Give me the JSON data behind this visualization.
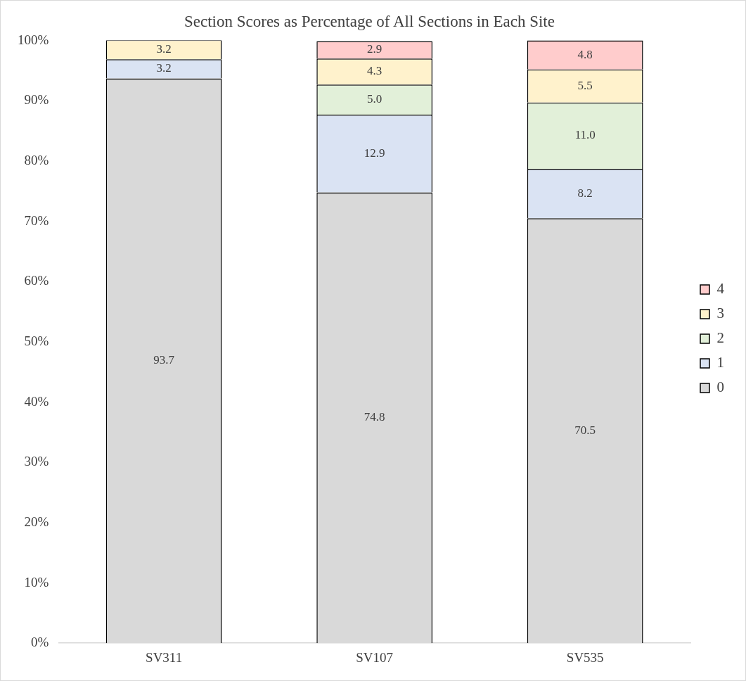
{
  "chart_data": {
    "type": "bar",
    "title": "Section Scores as Percentage of All Sections in Each Site",
    "categories": [
      "SV311",
      "SV107",
      "SV535"
    ],
    "stacked": true,
    "ylim": [
      0,
      100
    ],
    "yticks": [
      {
        "value": 0,
        "label": "0%"
      },
      {
        "value": 10,
        "label": "10%"
      },
      {
        "value": 20,
        "label": "20%"
      },
      {
        "value": 30,
        "label": "30%"
      },
      {
        "value": 40,
        "label": "40%"
      },
      {
        "value": 50,
        "label": "50%"
      },
      {
        "value": 60,
        "label": "60%"
      },
      {
        "value": 70,
        "label": "70%"
      },
      {
        "value": 80,
        "label": "80%"
      },
      {
        "value": 90,
        "label": "90%"
      },
      {
        "value": 100,
        "label": "100%"
      }
    ],
    "grid": false,
    "legend": "right",
    "series": [
      {
        "name": "0",
        "color": "#d9d9d9",
        "values": [
          93.7,
          74.8,
          70.5
        ],
        "value_labels": [
          "93.7",
          "74.8",
          "70.5"
        ]
      },
      {
        "name": "1",
        "color": "#dae3f3",
        "values": [
          3.2,
          12.9,
          8.2
        ],
        "value_labels": [
          "3.2",
          "12.9",
          "8.2"
        ]
      },
      {
        "name": "2",
        "color": "#e2f0d9",
        "values": [
          null,
          5.0,
          11.0
        ],
        "value_labels": [
          null,
          "5.0",
          "11.0"
        ]
      },
      {
        "name": "3",
        "color": "#fff2cc",
        "values": [
          3.2,
          4.3,
          5.5
        ],
        "value_labels": [
          "3.2",
          "4.3",
          "5.5"
        ]
      },
      {
        "name": "4",
        "color": "#ffcccc",
        "values": [
          null,
          2.9,
          4.8
        ],
        "value_labels": [
          null,
          "2.9",
          "4.8"
        ]
      }
    ]
  }
}
